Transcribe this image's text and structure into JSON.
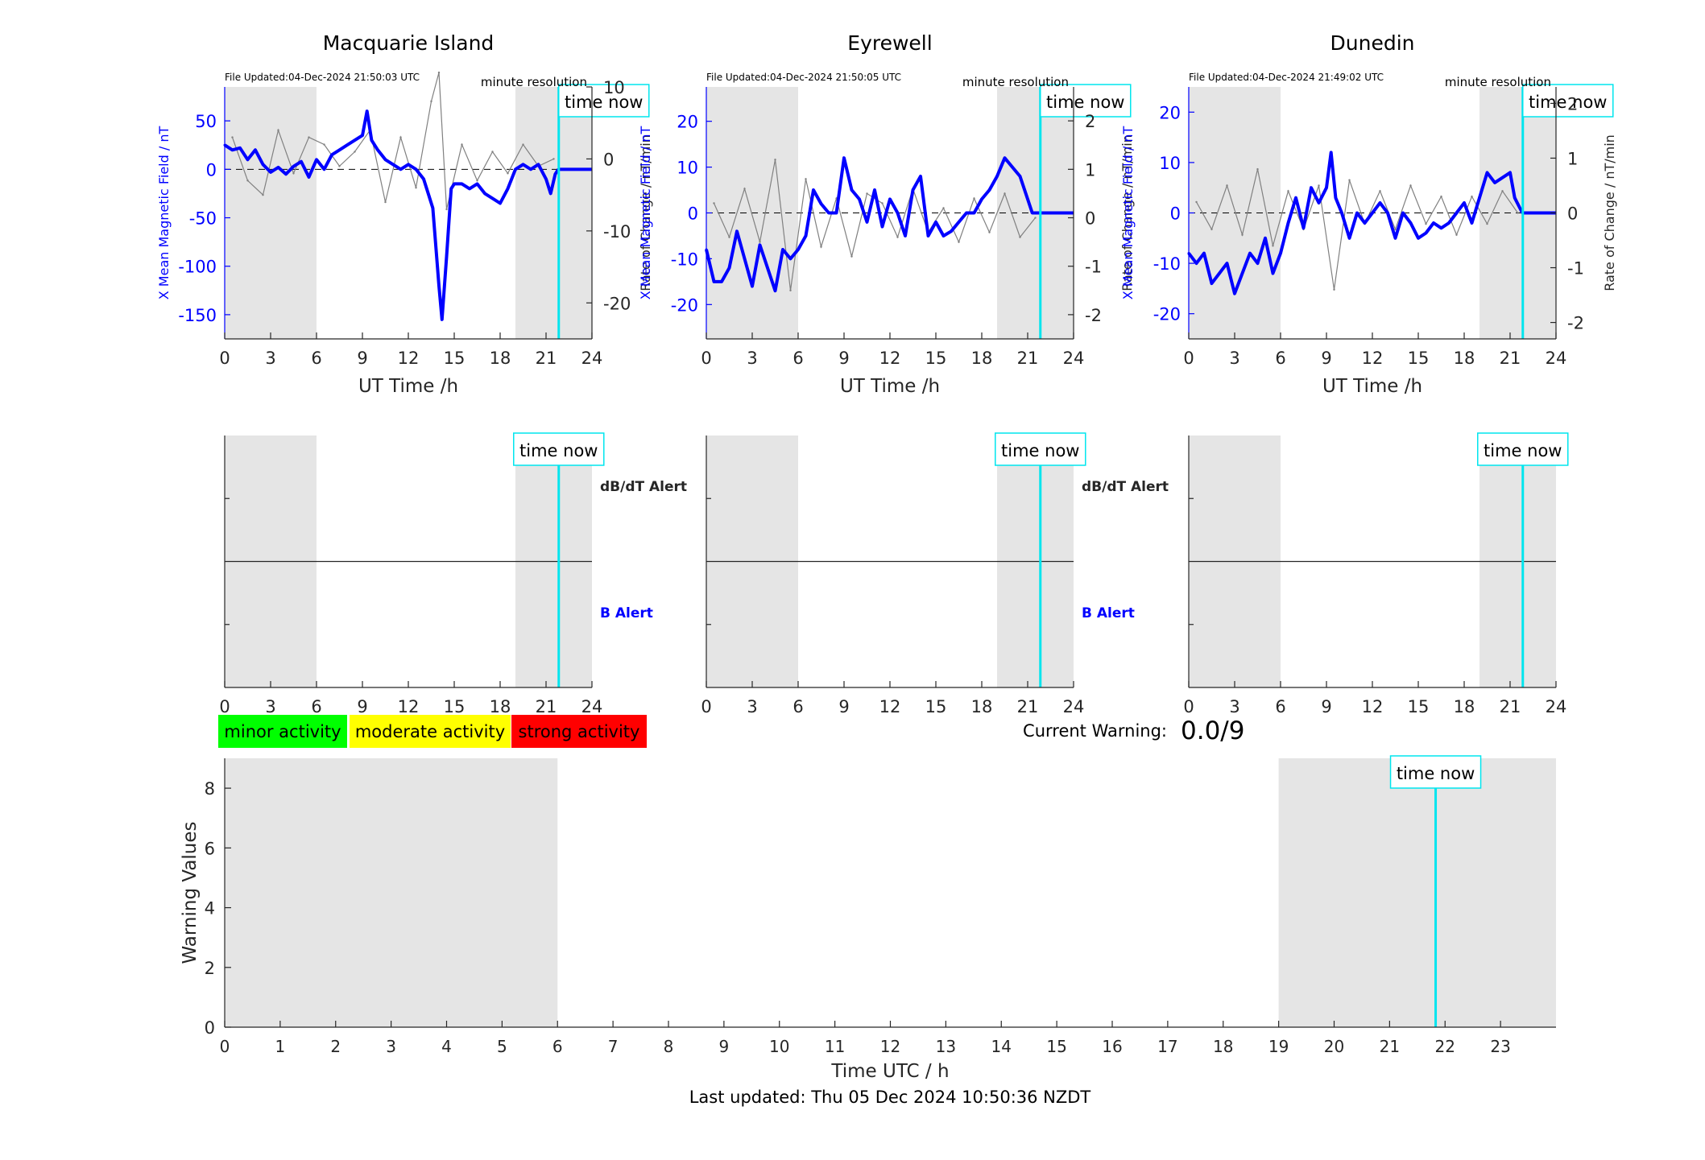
{
  "footer": {
    "last_updated": "Last updated: Thu 05 Dec 2024 10:50:36 NZDT"
  },
  "legend": {
    "items": [
      {
        "label": "minor activity",
        "color": "#00ff00"
      },
      {
        "label": "moderate activity",
        "color": "#ffff00"
      },
      {
        "label": "strong activity",
        "color": "#ff0000"
      }
    ]
  },
  "current_warning": {
    "label": "Current Warning:",
    "value": "0.0/9"
  },
  "colors": {
    "x_field": "#0000ff",
    "rate": "#808080",
    "time_now_line": "#00e5ee",
    "night_shading": "#e5e5e5"
  },
  "chart_data": [
    {
      "id": "macquarie-magnetometer",
      "type": "line",
      "title": "Macquarie Island",
      "file_updated": "File Updated:04-Dec-2024 21:50:03 UTC",
      "resolution_label": "minute resolution",
      "time_now_label": "time now",
      "time_now_hour": 21.83,
      "xlabel": "UT Time /h",
      "ylabel": "X Mean Magnetic Field / nT",
      "y2label": "Rate of Change / nT/min",
      "xlim": [
        0,
        24
      ],
      "xticks": [
        0,
        3,
        6,
        9,
        12,
        15,
        18,
        21,
        24
      ],
      "ylim": [
        -175,
        85
      ],
      "yticks": [
        50,
        0,
        -50,
        -100,
        -150
      ],
      "y2lim": [
        -25,
        10
      ],
      "y2ticks": [
        10,
        0,
        -10,
        -20
      ],
      "shaded_hours": [
        [
          0,
          6
        ],
        [
          19,
          24
        ]
      ],
      "series": [
        {
          "axis": "left",
          "x": [
            0,
            0.5,
            1,
            1.5,
            2,
            2.5,
            3,
            3.5,
            4,
            4.5,
            5,
            5.5,
            6,
            6.5,
            7,
            7.5,
            8,
            8.5,
            9,
            9.3,
            9.6,
            10,
            10.5,
            11,
            11.5,
            12,
            12.5,
            13,
            13.3,
            13.6,
            13.8,
            14,
            14.2,
            14.5,
            14.8,
            15,
            15.5,
            16,
            16.5,
            17,
            17.5,
            18,
            18.5,
            19,
            19.5,
            20,
            20.5,
            21,
            21.3,
            21.6,
            21.8
          ],
          "values": [
            25,
            20,
            22,
            10,
            20,
            5,
            -3,
            2,
            -5,
            3,
            8,
            -8,
            10,
            0,
            15,
            20,
            25,
            30,
            35,
            60,
            30,
            20,
            10,
            5,
            0,
            5,
            0,
            -10,
            -25,
            -40,
            -80,
            -120,
            -155,
            -90,
            -20,
            -15,
            -15,
            -20,
            -15,
            -25,
            -30,
            -35,
            -20,
            0,
            5,
            0,
            5,
            -10,
            -25,
            -5,
            0
          ]
        },
        {
          "axis": "right",
          "x": [
            0.5,
            1.5,
            2.5,
            3.5,
            4.5,
            5.5,
            6.5,
            7.5,
            8.5,
            9.5,
            10.5,
            11.5,
            12.5,
            13.5,
            14,
            14.5,
            15.5,
            16.5,
            17.5,
            18.5,
            19.5,
            20.5,
            21.5
          ],
          "values": [
            3,
            -3,
            -5,
            4,
            -2,
            3,
            2,
            -1,
            1,
            4,
            -6,
            3,
            -4,
            8,
            12,
            -7,
            2,
            -3,
            1,
            -2,
            2,
            -1,
            0
          ]
        }
      ]
    },
    {
      "id": "eyrewell-magnetometer",
      "type": "line",
      "title": "Eyrewell",
      "file_updated": "File Updated:04-Dec-2024 21:50:05 UTC",
      "resolution_label": "minute resolution",
      "time_now_label": "time now",
      "time_now_hour": 21.83,
      "xlabel": "UT Time /h",
      "ylabel": "X Mean Magnetic Field / nT",
      "y2label": "Rate of Change / nT/min",
      "xlim": [
        0,
        24
      ],
      "xticks": [
        0,
        3,
        6,
        9,
        12,
        15,
        18,
        21,
        24
      ],
      "ylim": [
        -27.5,
        27.5
      ],
      "yticks": [
        20,
        10,
        0,
        -10,
        -20
      ],
      "y2lim": [
        -2.5,
        2.7
      ],
      "y2ticks": [
        2,
        1,
        0,
        -1,
        -2
      ],
      "shaded_hours": [
        [
          0,
          6
        ],
        [
          19,
          24
        ]
      ],
      "series": [
        {
          "axis": "left",
          "x": [
            0,
            0.5,
            1,
            1.5,
            2,
            2.5,
            3,
            3.5,
            4,
            4.5,
            5,
            5.5,
            6,
            6.5,
            7,
            7.5,
            8,
            8.5,
            9,
            9.5,
            10,
            10.5,
            11,
            11.5,
            12,
            12.5,
            13,
            13.5,
            14,
            14.5,
            15,
            15.5,
            16,
            16.5,
            17,
            17.5,
            18,
            18.5,
            19,
            19.5,
            20,
            20.5,
            21,
            21.3,
            21.8
          ],
          "values": [
            -8,
            -15,
            -15,
            -12,
            -4,
            -10,
            -16,
            -7,
            -12,
            -17,
            -8,
            -10,
            -8,
            -5,
            5,
            2,
            0,
            0,
            12,
            5,
            3,
            -2,
            5,
            -3,
            3,
            0,
            -5,
            5,
            8,
            -5,
            -2,
            -5,
            -4,
            -2,
            0,
            0,
            3,
            5,
            8,
            12,
            10,
            8,
            3,
            0,
            0
          ]
        },
        {
          "axis": "right",
          "x": [
            0.5,
            1.5,
            2.5,
            3.5,
            4.5,
            5.5,
            6.5,
            7.5,
            8.5,
            9.5,
            10.5,
            11.5,
            12.5,
            13.5,
            14.5,
            15.5,
            16.5,
            17.5,
            18.5,
            19.5,
            20.5,
            21.5
          ],
          "values": [
            0.3,
            -0.4,
            0.6,
            -0.5,
            1.2,
            -1.5,
            0.8,
            -0.6,
            0.4,
            -0.8,
            0.5,
            0.3,
            -0.4,
            0.6,
            -0.3,
            0.2,
            -0.5,
            0.4,
            -0.3,
            0.5,
            -0.4,
            0
          ]
        }
      ]
    },
    {
      "id": "dunedin-magnetometer",
      "type": "line",
      "title": "Dunedin",
      "file_updated": "File Updated:04-Dec-2024 21:49:02 UTC",
      "resolution_label": "minute resolution",
      "time_now_label": "time now",
      "time_now_hour": 21.83,
      "xlabel": "UT Time /h",
      "ylabel": "X Mean Magnetic Field / nT",
      "y2label": "Rate of Change / nT/min",
      "xlim": [
        0,
        24
      ],
      "xticks": [
        0,
        3,
        6,
        9,
        12,
        15,
        18,
        21,
        24
      ],
      "ylim": [
        -25,
        25
      ],
      "yticks": [
        20,
        10,
        0,
        -10,
        -20
      ],
      "y2lim": [
        -2.3,
        2.3
      ],
      "y2ticks": [
        2,
        1,
        0,
        -1,
        -2
      ],
      "shaded_hours": [
        [
          0,
          6
        ],
        [
          19,
          24
        ]
      ],
      "series": [
        {
          "axis": "left",
          "x": [
            0,
            0.5,
            1,
            1.5,
            2,
            2.5,
            3,
            3.5,
            4,
            4.5,
            5,
            5.5,
            6,
            6.5,
            7,
            7.5,
            8,
            8.5,
            9,
            9.3,
            9.6,
            10,
            10.5,
            11,
            11.5,
            12,
            12.5,
            13,
            13.5,
            14,
            14.5,
            15,
            15.5,
            16,
            16.5,
            17,
            17.5,
            18,
            18.5,
            19,
            19.5,
            20,
            20.5,
            21,
            21.3,
            21.8
          ],
          "values": [
            -8,
            -10,
            -8,
            -14,
            -12,
            -10,
            -16,
            -12,
            -8,
            -10,
            -5,
            -12,
            -8,
            -2,
            3,
            -3,
            5,
            2,
            5,
            12,
            3,
            0,
            -5,
            0,
            -2,
            0,
            2,
            0,
            -5,
            0,
            -2,
            -5,
            -4,
            -2,
            -3,
            -2,
            0,
            2,
            -2,
            3,
            8,
            6,
            7,
            8,
            3,
            0
          ]
        },
        {
          "axis": "right",
          "x": [
            0.5,
            1.5,
            2.5,
            3.5,
            4.5,
            5.5,
            6.5,
            7.5,
            8.5,
            9.5,
            10.5,
            11.5,
            12.5,
            13.5,
            14.5,
            15.5,
            16.5,
            17.5,
            18.5,
            19.5,
            20.5,
            21.5
          ],
          "values": [
            0.2,
            -0.3,
            0.5,
            -0.4,
            0.8,
            -0.6,
            0.4,
            -0.3,
            0.5,
            -1.4,
            0.6,
            -0.2,
            0.4,
            -0.3,
            0.5,
            -0.2,
            0.3,
            -0.4,
            0.3,
            -0.2,
            0.4,
            0
          ]
        }
      ]
    },
    {
      "id": "macquarie-alert",
      "type": "line",
      "title": "",
      "xlim": [
        0,
        24
      ],
      "xticks": [
        0,
        3,
        6,
        9,
        12,
        15,
        18,
        21,
        24
      ],
      "shaded_hours": [
        [
          0,
          6
        ],
        [
          19,
          24
        ]
      ],
      "time_now_label": "time now",
      "time_now_hour": 21.83,
      "right_labels": [
        "dB/dT Alert",
        "B Alert"
      ]
    },
    {
      "id": "eyrewell-alert",
      "type": "line",
      "title": "",
      "xlim": [
        0,
        24
      ],
      "xticks": [
        0,
        3,
        6,
        9,
        12,
        15,
        18,
        21,
        24
      ],
      "shaded_hours": [
        [
          0,
          6
        ],
        [
          19,
          24
        ]
      ],
      "time_now_label": "time now",
      "time_now_hour": 21.83,
      "right_labels": [
        "dB/dT Alert",
        "B Alert"
      ]
    },
    {
      "id": "dunedin-alert",
      "type": "line",
      "title": "",
      "xlim": [
        0,
        24
      ],
      "xticks": [
        0,
        3,
        6,
        9,
        12,
        15,
        18,
        21,
        24
      ],
      "shaded_hours": [
        [
          0,
          6
        ],
        [
          19,
          24
        ]
      ],
      "time_now_label": "time now",
      "time_now_hour": 21.83,
      "right_labels": []
    },
    {
      "id": "warning-values",
      "type": "line",
      "title": "",
      "xlabel": "Time UTC / h",
      "ylabel": "Warning Values",
      "xlim": [
        0,
        24
      ],
      "xticks": [
        0,
        1,
        2,
        3,
        4,
        5,
        6,
        7,
        8,
        9,
        10,
        11,
        12,
        13,
        14,
        15,
        16,
        17,
        18,
        19,
        20,
        21,
        22,
        23
      ],
      "ylim": [
        0,
        9
      ],
      "yticks": [
        0,
        2,
        4,
        6,
        8
      ],
      "shaded_hours": [
        [
          0,
          6
        ],
        [
          19,
          24
        ]
      ],
      "time_now_label": "time now",
      "time_now_hour": 21.83
    }
  ]
}
